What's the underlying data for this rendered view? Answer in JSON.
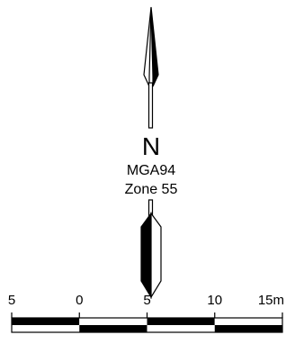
{
  "north_arrow": {
    "letter": "N",
    "datum": "MGA94",
    "zone": "Zone 55",
    "icon": "north-arrow-icon"
  },
  "scale_bar": {
    "unit": "m",
    "tick_labels": [
      "5",
      "0",
      "5",
      "10",
      "15m"
    ],
    "tick_values": [
      -5,
      0,
      5,
      10,
      15
    ],
    "segments": [
      {
        "from": -5,
        "to": 0,
        "top": "black",
        "bottom": "white"
      },
      {
        "from": 0,
        "to": 5,
        "top": "white",
        "bottom": "black"
      },
      {
        "from": 5,
        "to": 10,
        "top": "black",
        "bottom": "white"
      },
      {
        "from": 10,
        "to": 15,
        "top": "white",
        "bottom": "black"
      }
    ]
  },
  "colors": {
    "ink": "#000000",
    "paper": "#ffffff"
  }
}
